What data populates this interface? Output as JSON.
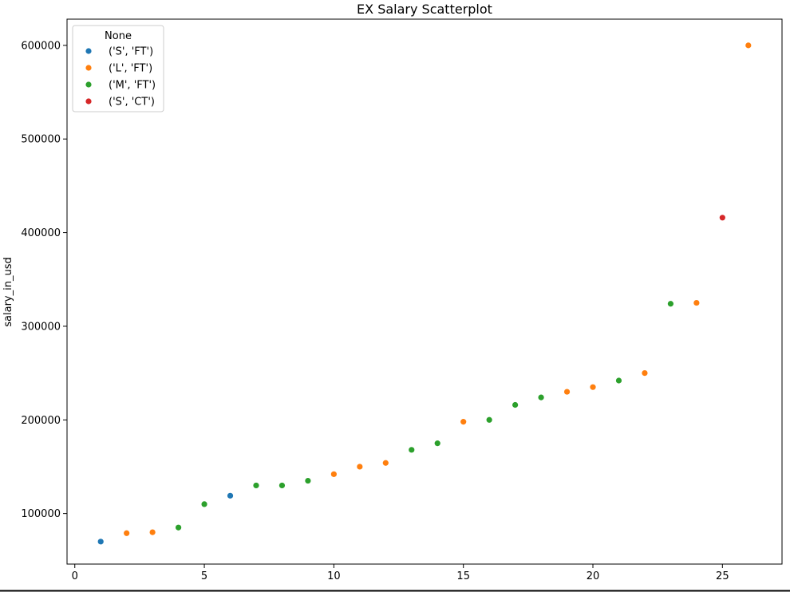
{
  "chart_data": {
    "type": "scatter",
    "title": "EX Salary Scatterplot",
    "xlabel": "",
    "ylabel": "salary_in_usd",
    "xlim": [
      -0.3,
      27.3
    ],
    "ylim": [
      46000,
      628000
    ],
    "xticks": [
      0,
      5,
      10,
      15,
      20,
      25
    ],
    "yticks": [
      100000,
      200000,
      300000,
      400000,
      500000,
      600000
    ],
    "grid": false,
    "legend": {
      "title": "None",
      "placement": "top-left",
      "entries": [
        "('S', 'FT')",
        "('L', 'FT')",
        "('M', 'FT')",
        "('S', 'CT')"
      ]
    },
    "series": [
      {
        "name": "('S', 'FT')",
        "color": "#1f77b4",
        "x": [
          1,
          6
        ],
        "y": [
          70000,
          119000
        ]
      },
      {
        "name": "('L', 'FT')",
        "color": "#ff7f0e",
        "x": [
          2,
          3,
          10,
          11,
          12,
          15,
          19,
          20,
          22,
          24,
          26
        ],
        "y": [
          79000,
          80000,
          142000,
          150000,
          154000,
          198000,
          230000,
          235000,
          250000,
          325000,
          600000
        ]
      },
      {
        "name": "('M', 'FT')",
        "color": "#2ca02c",
        "x": [
          4,
          5,
          7,
          8,
          9,
          13,
          14,
          16,
          17,
          18,
          21,
          23
        ],
        "y": [
          85000,
          110000,
          130000,
          130000,
          135000,
          168000,
          175000,
          200000,
          216000,
          224000,
          242000,
          324000
        ]
      },
      {
        "name": "('S', 'CT')",
        "color": "#d62728",
        "x": [
          25
        ],
        "y": [
          416000
        ]
      }
    ]
  }
}
